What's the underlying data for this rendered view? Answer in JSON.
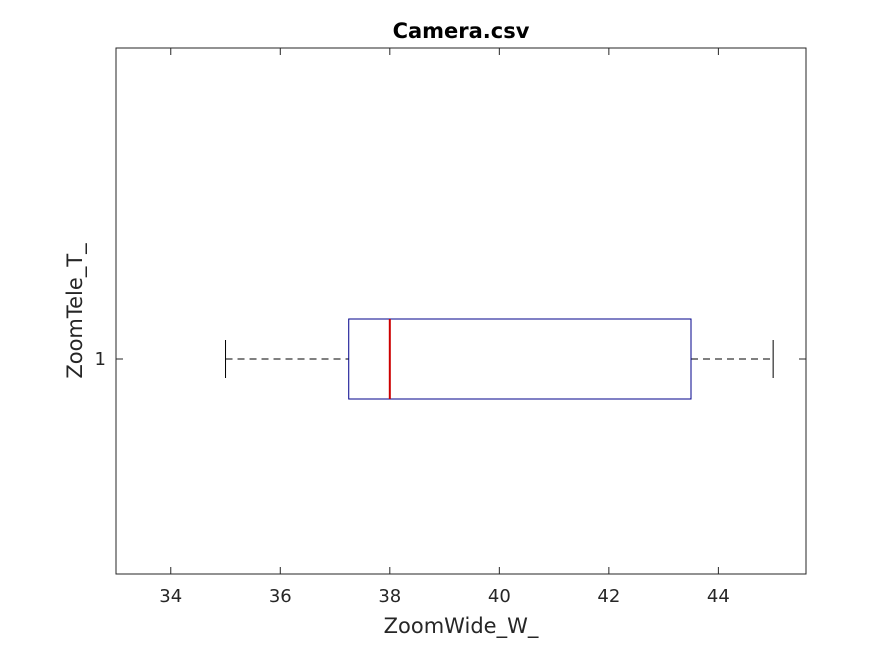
{
  "chart_data": {
    "type": "boxplot",
    "orientation": "horizontal",
    "title": "Camera.csv",
    "xlabel": "ZoomWide_W_",
    "ylabel": "ZoomTele_T_",
    "xlim": [
      33,
      45.6
    ],
    "x_ticks": [
      34,
      36,
      38,
      40,
      42,
      44
    ],
    "categories": [
      "1"
    ],
    "boxes": [
      {
        "category": "1",
        "whisker_low": 35,
        "q1": 37.25,
        "median": 38,
        "q3": 43.5,
        "whisker_high": 45
      }
    ],
    "grid": false,
    "colors": {
      "box": "#00008b",
      "median": "#cc0000",
      "whisker": "#000000",
      "axes": "#262626"
    }
  }
}
